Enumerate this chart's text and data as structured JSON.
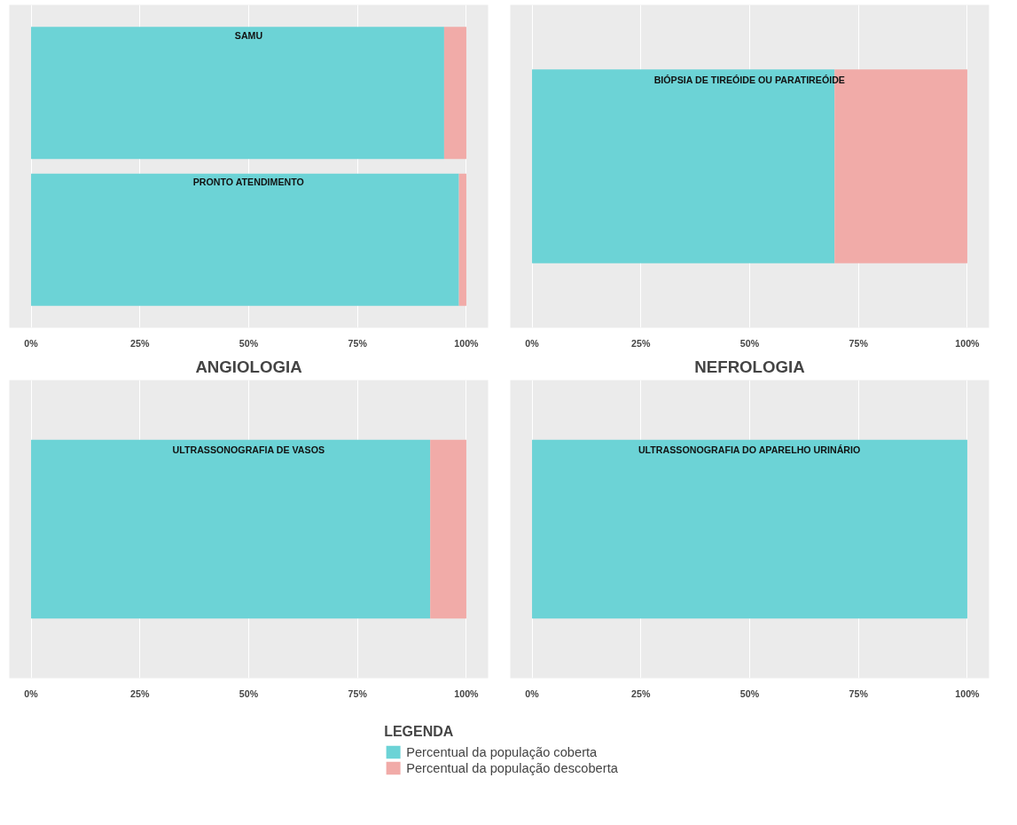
{
  "chart_data": [
    {
      "type": "bar",
      "orientation": "horizontal",
      "stacked": true,
      "categories": [
        "SAMU",
        "PRONTO ATENDIMENTO"
      ],
      "xlim": [
        -5,
        105
      ],
      "xticks": [
        {
          "value": 0,
          "label": "0%"
        },
        {
          "value": 25,
          "label": "25%"
        },
        {
          "value": 50,
          "label": "50%"
        },
        {
          "value": 75,
          "label": "75%"
        },
        {
          "value": 100,
          "label": "100%"
        }
      ],
      "grid": "x",
      "tick_labels": "x",
      "series": [
        {
          "color": "#6cd3d6",
          "values": [
            94.9,
            98.3
          ]
        },
        {
          "color": "#f1aba8",
          "values": [
            5.1,
            1.7
          ]
        }
      ]
    },
    {
      "type": "bar",
      "orientation": "horizontal",
      "stacked": true,
      "categories": [
        "BIÓPSIA DE TIREÓIDE OU PARATIREÓIDE"
      ],
      "xlim": [
        -5,
        105
      ],
      "xticks": [
        {
          "value": 0,
          "label": "0%"
        },
        {
          "value": 25,
          "label": "25%"
        },
        {
          "value": 50,
          "label": "50%"
        },
        {
          "value": 75,
          "label": "75%"
        },
        {
          "value": 100,
          "label": "100%"
        }
      ],
      "grid": "x",
      "tick_labels": "x",
      "series": [
        {
          "color": "#6cd3d6",
          "values": [
            69.5
          ]
        },
        {
          "color": "#f1aba8",
          "values": [
            30.5
          ]
        }
      ]
    },
    {
      "type": "bar",
      "orientation": "horizontal",
      "stacked": true,
      "title": "ANGIOLOGIA",
      "categories": [
        "ULTRASSONOGRAFIA DE VASOS"
      ],
      "xlim": [
        -5,
        105
      ],
      "xticks": [
        {
          "value": 0,
          "label": "0%"
        },
        {
          "value": 25,
          "label": "25%"
        },
        {
          "value": 50,
          "label": "50%"
        },
        {
          "value": 75,
          "label": "75%"
        },
        {
          "value": 100,
          "label": "100%"
        }
      ],
      "grid": "x",
      "tick_labels": "x",
      "series": [
        {
          "color": "#6cd3d6",
          "values": [
            91.7
          ]
        },
        {
          "color": "#f1aba8",
          "values": [
            8.3
          ]
        }
      ]
    },
    {
      "type": "bar",
      "orientation": "horizontal",
      "stacked": true,
      "title": "NEFROLOGIA",
      "categories": [
        "ULTRASSONOGRAFIA DO APARELHO URINÁRIO"
      ],
      "xlim": [
        -5,
        105
      ],
      "xticks": [
        {
          "value": 0,
          "label": "0%"
        },
        {
          "value": 25,
          "label": "25%"
        },
        {
          "value": 50,
          "label": "50%"
        },
        {
          "value": 75,
          "label": "75%"
        },
        {
          "value": 100,
          "label": "100%"
        }
      ],
      "grid": "x",
      "tick_labels": "x",
      "legend": "bottom",
      "legend_title": "LEGENDA",
      "series": [
        {
          "name": "Percentual da população coberta",
          "color": "#6cd3d6",
          "values": [
            100
          ]
        },
        {
          "name": "Percentual da população descoberta",
          "color": "#f1aba8",
          "values": [
            0
          ]
        }
      ]
    }
  ]
}
